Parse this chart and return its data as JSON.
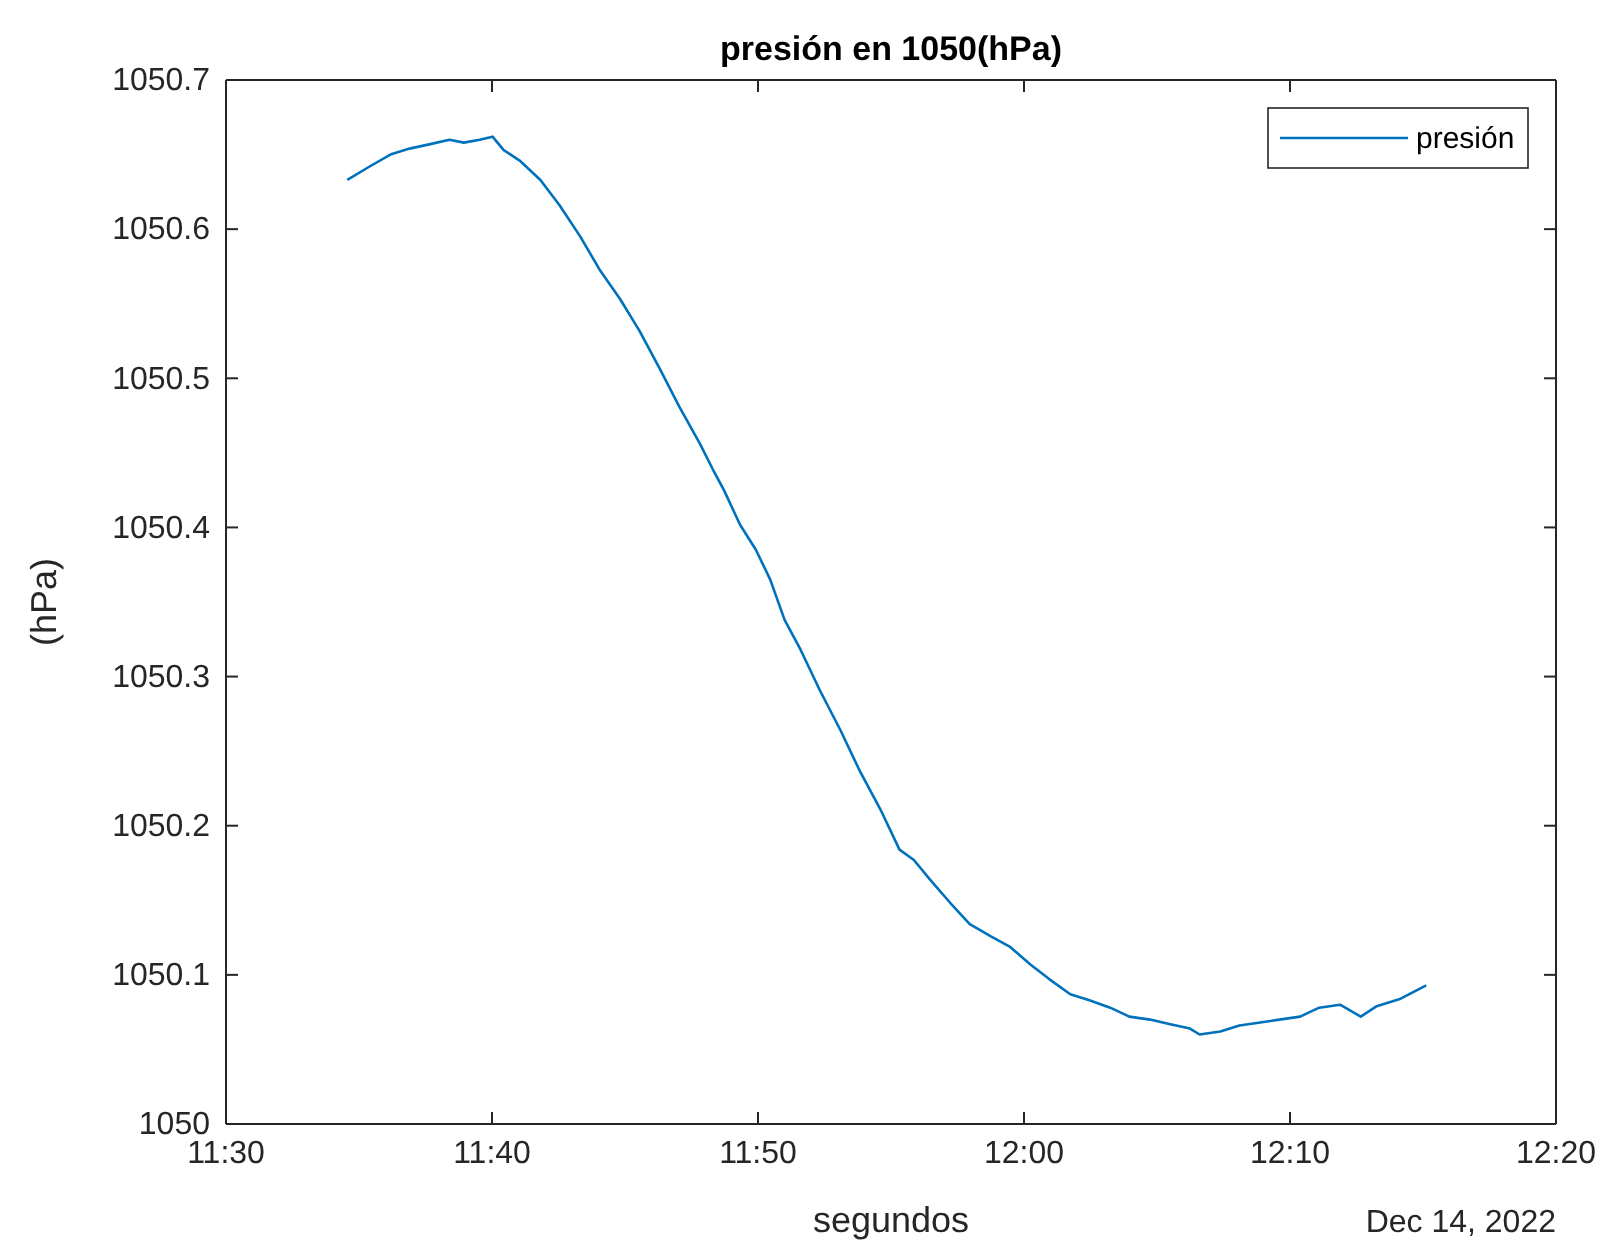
{
  "chart_data": {
    "type": "line",
    "title": "presión en 1050(hPa)",
    "xlabel": "segundos",
    "ylabel": "(hPa)",
    "annotations": [
      "Dec 14, 2022"
    ],
    "x": [
      11.576,
      11.59,
      11.603,
      11.615,
      11.628,
      11.64,
      11.649,
      11.659,
      11.667,
      11.674,
      11.684,
      11.697,
      11.709,
      11.722,
      11.734,
      11.747,
      11.759,
      11.772,
      11.784,
      11.797,
      11.805,
      11.812,
      11.822,
      11.832,
      11.841,
      11.85,
      11.86,
      11.872,
      11.885,
      11.897,
      11.91,
      11.922,
      11.931,
      11.941,
      11.954,
      11.966,
      11.979,
      11.991,
      12.004,
      12.016,
      12.029,
      12.041,
      12.054,
      12.066,
      12.079,
      12.091,
      12.104,
      12.11,
      12.123,
      12.135,
      12.148,
      12.16,
      12.173,
      12.185,
      12.198,
      12.211,
      12.221,
      12.236,
      12.252
    ],
    "series": [
      {
        "name": "presión",
        "color": "#0072bd",
        "values": [
          1050.633,
          1050.642,
          1050.65,
          1050.654,
          1050.657,
          1050.66,
          1050.658,
          1050.66,
          1050.662,
          1050.653,
          1050.646,
          1050.633,
          1050.616,
          1050.595,
          1050.573,
          1050.553,
          1050.532,
          1050.506,
          1050.481,
          1050.456,
          1050.439,
          1050.425,
          1050.402,
          1050.385,
          1050.365,
          1050.338,
          1050.318,
          1050.291,
          1050.264,
          1050.237,
          1050.211,
          1050.184,
          1050.177,
          1050.164,
          1050.148,
          1050.134,
          1050.126,
          1050.119,
          1050.107,
          1050.097,
          1050.087,
          1050.083,
          1050.078,
          1050.072,
          1050.07,
          1050.067,
          1050.064,
          1050.06,
          1050.062,
          1050.066,
          1050.068,
          1050.07,
          1050.072,
          1050.078,
          1050.08,
          1050.072,
          1050.079,
          1050.084,
          1050.093
        ]
      }
    ],
    "xlim": [
      11.5,
      12.333333
    ],
    "xticks": [
      {
        "value": 11.5,
        "label": "11:30"
      },
      {
        "value": 11.666667,
        "label": "11:40"
      },
      {
        "value": 11.833333,
        "label": "11:50"
      },
      {
        "value": 12,
        "label": "12:00"
      },
      {
        "value": 12.166667,
        "label": "12:10"
      },
      {
        "value": 12.333333,
        "label": "12:20"
      }
    ],
    "ylim": [
      1050,
      1050.7
    ],
    "yticks": [
      1050,
      1050.1,
      1050.2,
      1050.3,
      1050.4,
      1050.5,
      1050.6,
      1050.7
    ],
    "legend": "top right",
    "grid": false,
    "marker": "none",
    "line_style": "solid"
  }
}
